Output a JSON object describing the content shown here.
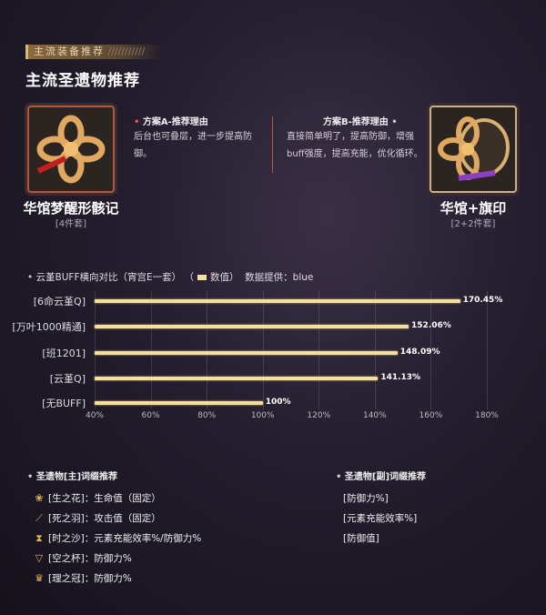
{
  "header": {
    "tag": "主流装备推荐",
    "title": "主流圣遗物推荐"
  },
  "sets": [
    {
      "name": "华馆梦醒形骸记",
      "pieces": "[4件套]",
      "reason_title": "方案A-推荐理由",
      "reason": "后台也可叠层，进一步提高防御。"
    },
    {
      "name": "华馆+旗印",
      "pieces": "[2+2件套]",
      "reason_title": "方案B-推荐理由",
      "reason": "直接简单明了，提高防御，增强buff强度，提高充能，优化循环。"
    }
  ],
  "chart_data": {
    "type": "bar",
    "orientation": "horizontal",
    "title": "云堇BUFF横向对比（宵宫E一套）",
    "legend": "数值",
    "source": "数据提供：blue",
    "categories": [
      "[6命云堇Q]",
      "[万叶1000精通]",
      "[班1201]",
      "[云堇Q]",
      "[无BUFF]"
    ],
    "values": [
      170.45,
      152.06,
      148.09,
      141.13,
      100
    ],
    "value_labels": [
      "170.45%",
      "152.06%",
      "148.09%",
      "141.13%",
      "100%"
    ],
    "xlim": [
      40,
      180
    ],
    "xticks": [
      "40%",
      "60%",
      "80%",
      "100%",
      "120%",
      "140%",
      "160%",
      "180%"
    ],
    "grid": true,
    "bar_color": "#f3dfa0"
  },
  "main_stats": {
    "title": "圣遗物[主]词缀推荐",
    "items": [
      {
        "icon": "flower-icon",
        "slot": "[生之花]",
        "stat": "：生命值（固定）"
      },
      {
        "icon": "feather-icon",
        "slot": "[死之羽]",
        "stat": "：攻击值（固定）"
      },
      {
        "icon": "hourglass-icon",
        "slot": "[时之沙]",
        "stat": "：元素充能效率%/防御力%"
      },
      {
        "icon": "goblet-icon",
        "slot": "[空之杯]",
        "stat": "：防御力%"
      },
      {
        "icon": "crown-icon",
        "slot": "[理之冠]",
        "stat": "：防御力%"
      }
    ]
  },
  "sub_stats": {
    "title": "圣遗物[副]词缀推荐",
    "items": [
      "[防御力%]",
      "[元素充能效率%]",
      "[防御值]"
    ]
  }
}
